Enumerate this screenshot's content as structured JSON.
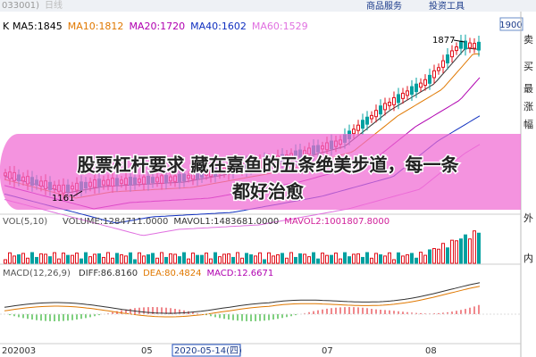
{
  "header": {
    "code": "033001)",
    "period": "日线",
    "menu": [
      "商品服务",
      "投资工具"
    ],
    "price_box": "1900"
  },
  "main_panel": {
    "label": "K",
    "indicators": [
      "MA5:1845",
      "MA10:1812",
      "MA20:1720",
      "MA40:1602",
      "MA60:1529"
    ],
    "high_label": "1877",
    "low_label": "1161"
  },
  "side_labels": [
    "卖",
    "买",
    "最",
    "涨",
    "幅",
    "外",
    "内"
  ],
  "overlay": {
    "line1": "股票杠杆要求 藏在嘉鱼的五条绝美步道，每一条",
    "line2": "都好治愈"
  },
  "volume_panel": {
    "label": "VOL(5,10)",
    "indicators": [
      "VOLUME:1284711.0000",
      "MAVOL1:1483681.0000",
      "MAVOL2:1001807.8000"
    ]
  },
  "macd_panel": {
    "label": "MACD(12,26,9)",
    "indicators": [
      "DIFF:86.8160",
      "DEA:80.4824",
      "MACD:12.6671"
    ]
  },
  "x_axis": {
    "labels": [
      "202003",
      "05",
      "2020-05-14(四)",
      "07",
      "08"
    ]
  }
}
